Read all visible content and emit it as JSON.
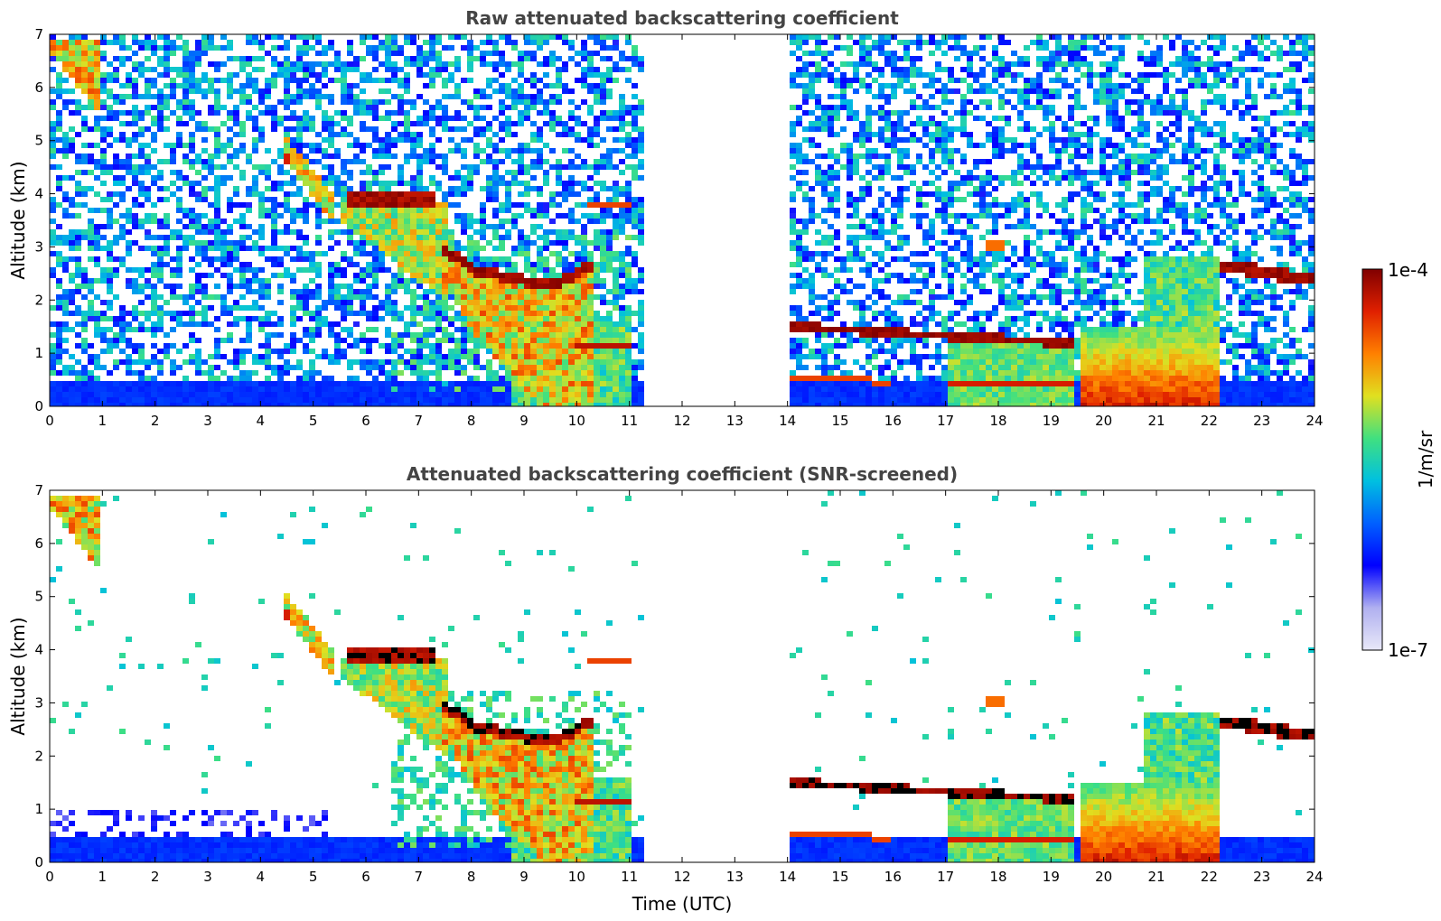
{
  "chart_data": [
    {
      "type": "heatmap",
      "title": "Raw attenuated backscattering coefficient",
      "xlabel": "",
      "ylabel": "Altitude (km)",
      "xlim": [
        0,
        24
      ],
      "ylim": [
        0,
        7
      ],
      "xticks": [
        "0",
        "1",
        "2",
        "3",
        "4",
        "5",
        "6",
        "7",
        "8",
        "9",
        "10",
        "11",
        "12",
        "13",
        "14",
        "15",
        "16",
        "17",
        "18",
        "19",
        "20",
        "21",
        "22",
        "23",
        "24"
      ],
      "yticks": [
        "0",
        "1",
        "2",
        "3",
        "4",
        "5",
        "6",
        "7"
      ],
      "data_gap_utc": [
        11.3,
        14.1
      ],
      "features": [
        {
          "name": "cirrus",
          "t": [
            0.0,
            1.0
          ],
          "alt_km": [
            5.5,
            6.9
          ],
          "level": 0.8
        },
        {
          "name": "descending layer",
          "t": [
            4.5,
            5.5
          ],
          "alt_km": [
            3.5,
            4.8
          ],
          "level": 0.7
        },
        {
          "name": "cloud top layer",
          "t": [
            5.6,
            7.3
          ],
          "alt_km": [
            3.75,
            4.0
          ],
          "level": 0.98
        },
        {
          "name": "descending cloud",
          "t": [
            7.5,
            10.2
          ],
          "alt_km": [
            2.2,
            2.9
          ],
          "level": 0.95
        },
        {
          "name": "virga",
          "t": [
            7.0,
            11.0
          ],
          "alt_km": [
            0.0,
            3.0
          ],
          "level": 0.6
        },
        {
          "name": "low cloud",
          "t": [
            14.1,
            19.4
          ],
          "alt_km": [
            1.0,
            1.5
          ],
          "level": 0.98
        },
        {
          "name": "rain",
          "t": [
            19.5,
            22.0
          ],
          "alt_km": [
            0.0,
            1.5
          ],
          "level": 0.85
        },
        {
          "name": "upper cloud",
          "t": [
            22.2,
            24.0
          ],
          "alt_km": [
            2.3,
            2.7
          ],
          "level": 0.98
        },
        {
          "name": "boundary layer",
          "t": [
            0.0,
            24.0
          ],
          "alt_km": [
            0.0,
            0.5
          ],
          "level": 0.15
        }
      ]
    },
    {
      "type": "heatmap",
      "title": "Attenuated backscattering coefficient (SNR-screened)",
      "xlabel": "Time (UTC)",
      "ylabel": "Altitude (km)",
      "xlim": [
        0,
        24
      ],
      "ylim": [
        0,
        7
      ],
      "xticks": [
        "0",
        "1",
        "2",
        "3",
        "4",
        "5",
        "6",
        "7",
        "8",
        "9",
        "10",
        "11",
        "12",
        "13",
        "14",
        "15",
        "16",
        "17",
        "18",
        "19",
        "20",
        "21",
        "22",
        "23",
        "24"
      ],
      "yticks": [
        "0",
        "1",
        "2",
        "3",
        "4",
        "5",
        "6",
        "7"
      ],
      "data_gap_utc": [
        11.3,
        14.1
      ]
    }
  ],
  "colorbar": {
    "label": "1/m/sr",
    "max_label": "1e-4",
    "min_label": "1e-7",
    "colors": [
      "#e8e8f8",
      "#b0b0f0",
      "#0000ff",
      "#0060ff",
      "#00c0e0",
      "#40e080",
      "#e0e020",
      "#ff8000",
      "#e02000",
      "#800000"
    ]
  }
}
